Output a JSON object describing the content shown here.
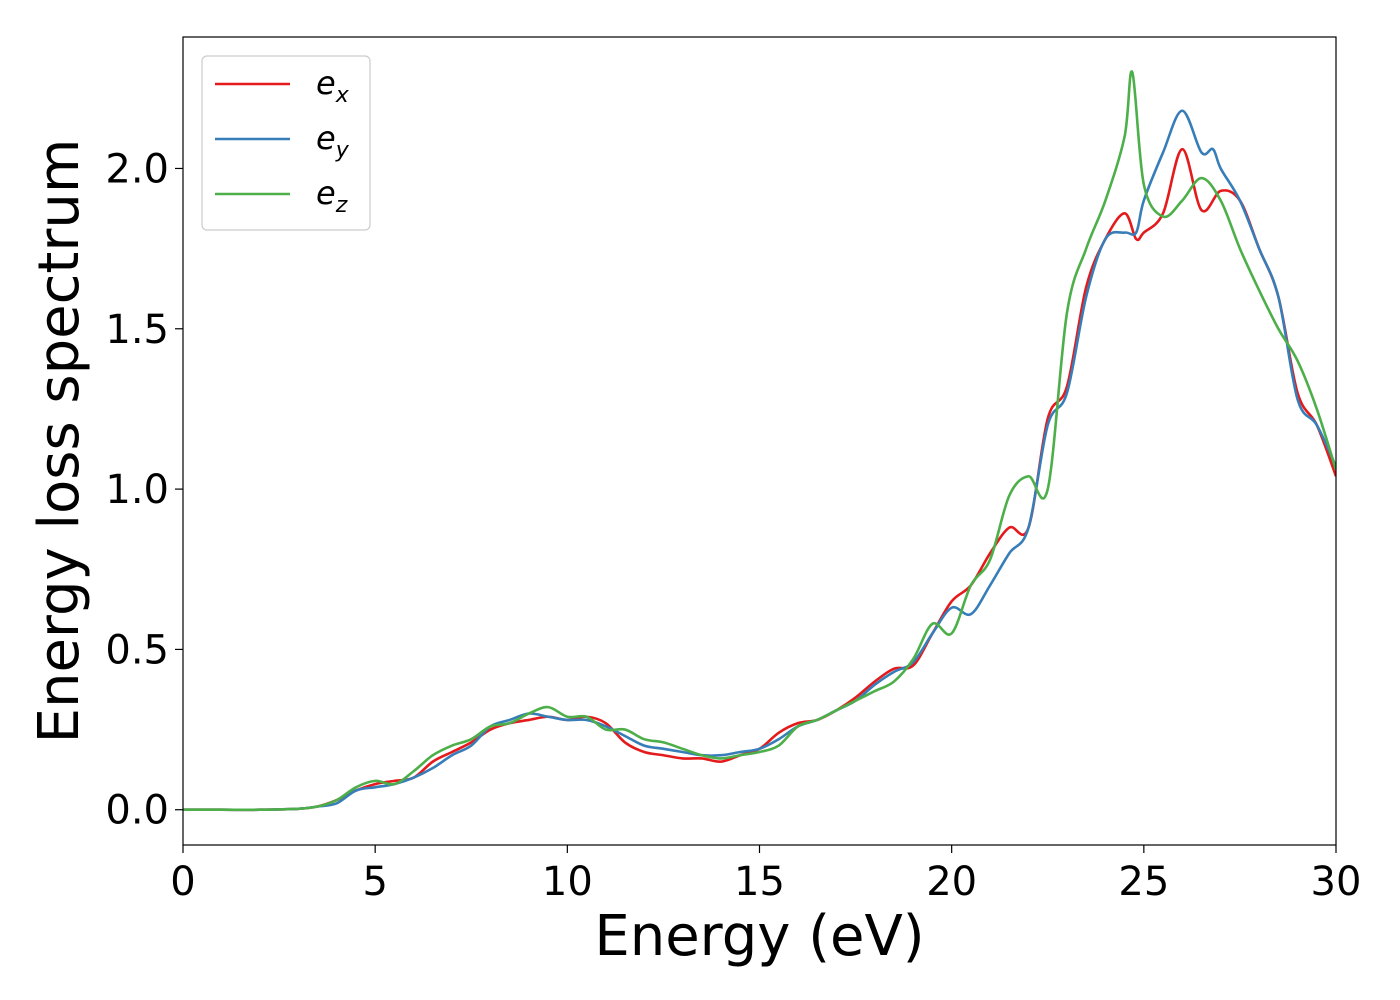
{
  "chart_data": {
    "type": "line",
    "title": "",
    "xlabel": "Energy (eV)",
    "ylabel": "Energy loss spectrum",
    "xlim": [
      0,
      30
    ],
    "ylim": [
      -0.11,
      2.41
    ],
    "xticks": [
      0,
      5,
      10,
      15,
      20,
      25,
      30
    ],
    "yticks": [
      0.0,
      0.5,
      1.0,
      1.5,
      2.0
    ],
    "xtick_labels": [
      "0",
      "5",
      "10",
      "15",
      "20",
      "25",
      "30"
    ],
    "ytick_labels": [
      "0.0",
      "0.5",
      "1.0",
      "1.5",
      "2.0"
    ],
    "grid": false,
    "legend_position": "top-left",
    "series": [
      {
        "name": "e_x",
        "label_base": "e",
        "label_sub": "x",
        "color": "#e41a1c",
        "x": [
          0,
          1,
          2,
          3,
          3.5,
          4,
          4.5,
          5,
          5.5,
          6,
          6.5,
          7,
          7.5,
          8,
          8.5,
          9,
          9.5,
          10,
          10.5,
          11,
          11.5,
          12,
          12.5,
          13,
          13.5,
          14,
          14.5,
          15,
          15.5,
          16,
          16.5,
          17,
          17.5,
          18,
          18.5,
          19,
          19.5,
          20,
          20.5,
          21,
          21.5,
          22,
          22.5,
          23,
          23.5,
          24,
          24.5,
          24.8,
          25,
          25.5,
          26,
          26.5,
          27,
          27.5,
          28,
          28.5,
          29,
          29.5,
          30
        ],
        "y": [
          0,
          0,
          0,
          0.003,
          0.01,
          0.03,
          0.06,
          0.08,
          0.09,
          0.1,
          0.15,
          0.18,
          0.21,
          0.25,
          0.27,
          0.28,
          0.29,
          0.28,
          0.29,
          0.27,
          0.21,
          0.18,
          0.17,
          0.16,
          0.16,
          0.15,
          0.17,
          0.19,
          0.24,
          0.27,
          0.28,
          0.31,
          0.35,
          0.4,
          0.44,
          0.45,
          0.55,
          0.65,
          0.7,
          0.8,
          0.88,
          0.88,
          1.22,
          1.32,
          1.63,
          1.78,
          1.86,
          1.78,
          1.8,
          1.86,
          2.06,
          1.87,
          1.93,
          1.9,
          1.75,
          1.6,
          1.3,
          1.2,
          1.04
        ]
      },
      {
        "name": "e_y",
        "label_base": "e",
        "label_sub": "y",
        "color": "#377eb8",
        "x": [
          0,
          1,
          2,
          3,
          3.5,
          4,
          4.5,
          5,
          5.5,
          6,
          6.5,
          7,
          7.5,
          8,
          8.5,
          9,
          9.5,
          10,
          10.5,
          11,
          11.5,
          12,
          12.5,
          13,
          13.5,
          14,
          14.5,
          15,
          15.5,
          16,
          16.5,
          17,
          17.5,
          18,
          18.5,
          19,
          19.5,
          20,
          20.5,
          21,
          21.5,
          22,
          22.5,
          23,
          23.5,
          24,
          24.5,
          24.8,
          25,
          25.5,
          26,
          26.5,
          26.8,
          27,
          27.5,
          28,
          28.5,
          29,
          29.5,
          30
        ],
        "y": [
          0,
          0,
          0,
          0.003,
          0.01,
          0.02,
          0.06,
          0.07,
          0.08,
          0.1,
          0.13,
          0.17,
          0.2,
          0.26,
          0.28,
          0.3,
          0.29,
          0.28,
          0.28,
          0.26,
          0.23,
          0.2,
          0.19,
          0.18,
          0.17,
          0.17,
          0.18,
          0.19,
          0.22,
          0.26,
          0.28,
          0.31,
          0.34,
          0.39,
          0.43,
          0.46,
          0.55,
          0.63,
          0.61,
          0.7,
          0.8,
          0.88,
          1.2,
          1.3,
          1.6,
          1.78,
          1.8,
          1.8,
          1.9,
          2.05,
          2.18,
          2.05,
          2.06,
          2.0,
          1.9,
          1.75,
          1.6,
          1.28,
          1.2,
          1.07
        ]
      },
      {
        "name": "e_z",
        "label_base": "e",
        "label_sub": "z",
        "color": "#4daf4a",
        "x": [
          0,
          1,
          2,
          3,
          3.5,
          4,
          4.5,
          5,
          5.5,
          6,
          6.5,
          7,
          7.5,
          8,
          8.5,
          9,
          9.5,
          10,
          10.5,
          11,
          11.5,
          12,
          12.5,
          13,
          13.5,
          14,
          14.5,
          15,
          15.5,
          16,
          16.5,
          17,
          17.5,
          18,
          18.5,
          19,
          19.5,
          20,
          20.5,
          21,
          21.5,
          22,
          22.5,
          23,
          23.5,
          24,
          24.5,
          24.7,
          25,
          25.5,
          26,
          26.5,
          27,
          27.5,
          28,
          28.5,
          29,
          29.5,
          30
        ],
        "y": [
          0,
          0,
          0,
          0.003,
          0.01,
          0.03,
          0.07,
          0.09,
          0.08,
          0.12,
          0.17,
          0.2,
          0.22,
          0.26,
          0.27,
          0.3,
          0.32,
          0.29,
          0.29,
          0.25,
          0.25,
          0.22,
          0.21,
          0.19,
          0.17,
          0.16,
          0.17,
          0.18,
          0.2,
          0.26,
          0.28,
          0.31,
          0.34,
          0.37,
          0.4,
          0.47,
          0.58,
          0.55,
          0.7,
          0.78,
          0.98,
          1.04,
          1.0,
          1.55,
          1.75,
          1.9,
          2.1,
          2.3,
          1.95,
          1.85,
          1.9,
          1.97,
          1.9,
          1.75,
          1.62,
          1.5,
          1.4,
          1.25,
          1.06
        ]
      }
    ]
  }
}
